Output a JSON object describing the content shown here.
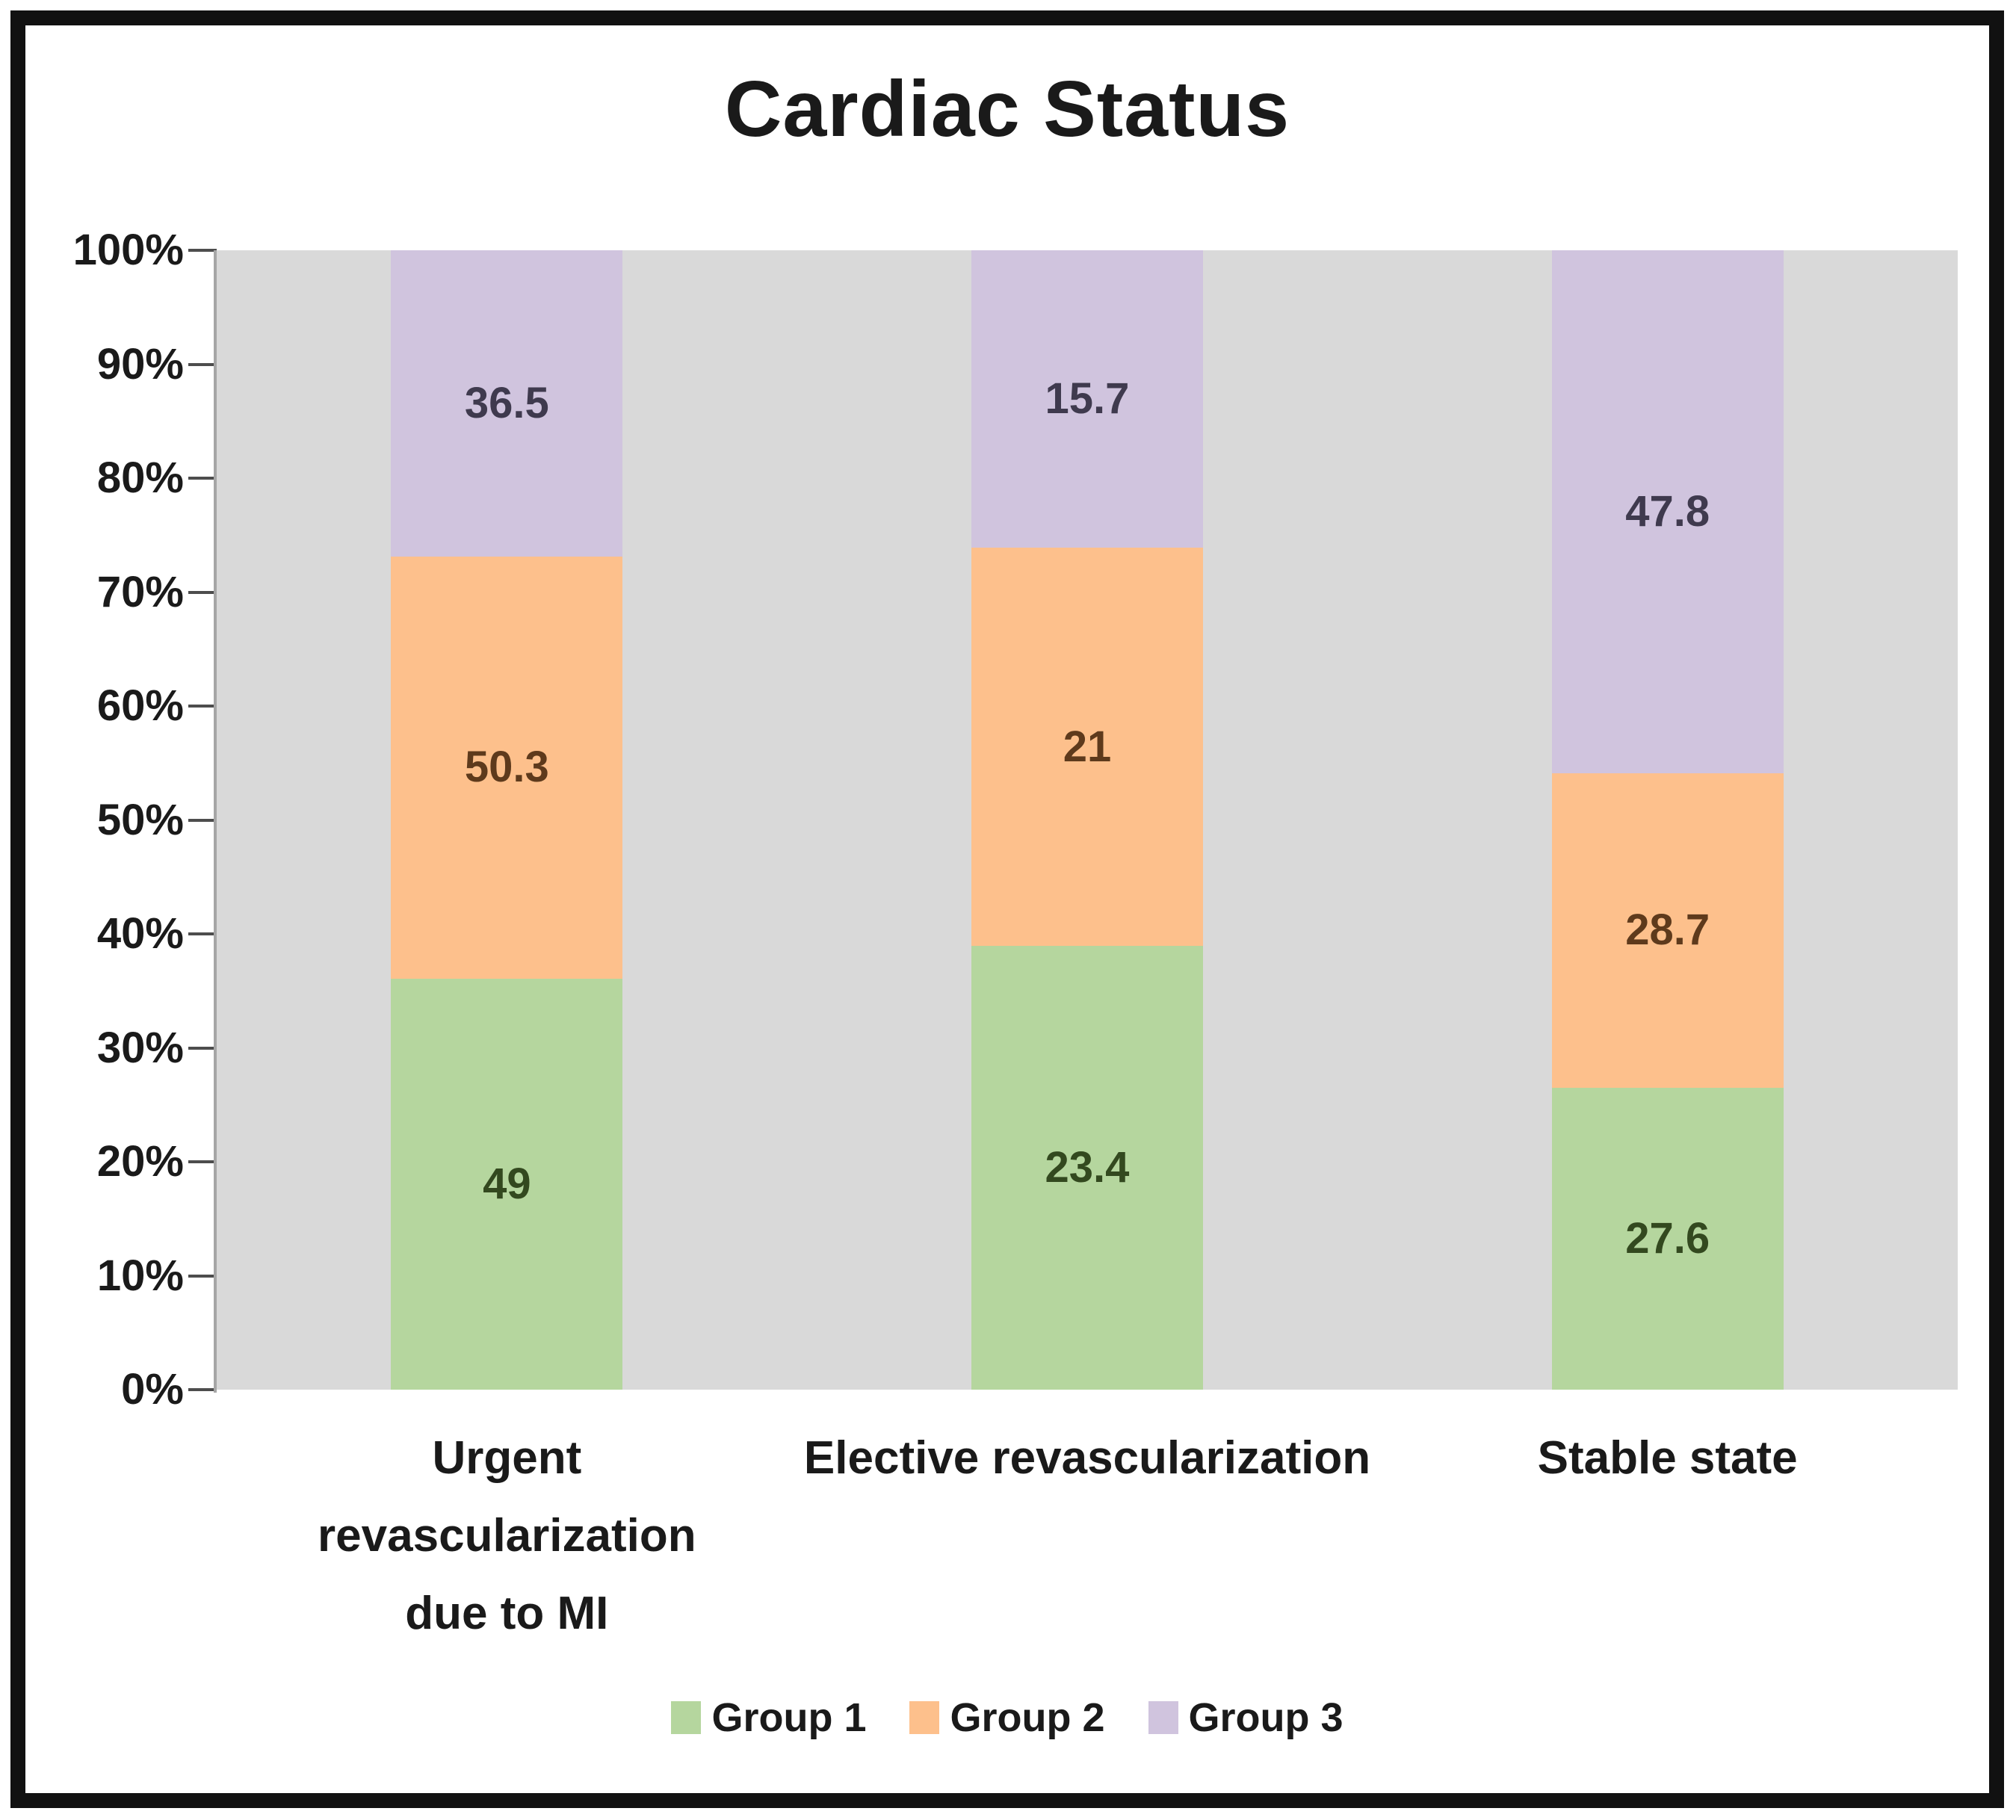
{
  "chart_data": {
    "type": "bar",
    "subtype": "stacked-100-percent",
    "title": "Cardiac Status",
    "categories": [
      "Urgent revascularization due to MI",
      "Elective revascularization",
      "Stable state"
    ],
    "series": [
      {
        "name": "Group 1",
        "color": "#b5d69e",
        "label_color": "#33491f",
        "values": [
          49,
          23.4,
          27.6
        ]
      },
      {
        "name": "Group 2",
        "color": "#fdc08c",
        "label_color": "#5e3a1c",
        "values": [
          50.3,
          21,
          28.7
        ]
      },
      {
        "name": "Group 3",
        "color": "#d0c4de",
        "label_color": "#3f3a4e",
        "values": [
          36.5,
          15.7,
          47.8
        ]
      }
    ],
    "y_axis": {
      "ticks": [
        "0%",
        "10%",
        "20%",
        "30%",
        "40%",
        "50%",
        "60%",
        "70%",
        "80%",
        "90%",
        "100%"
      ],
      "min": 0,
      "max": 100
    },
    "xlabel": "",
    "ylabel": "",
    "grid": false,
    "legend_position": "bottom",
    "plot_background": "#d9d9d9",
    "notes": "Bar segment heights are each value divided by the column total (100% stacked); data labels show raw values."
  }
}
